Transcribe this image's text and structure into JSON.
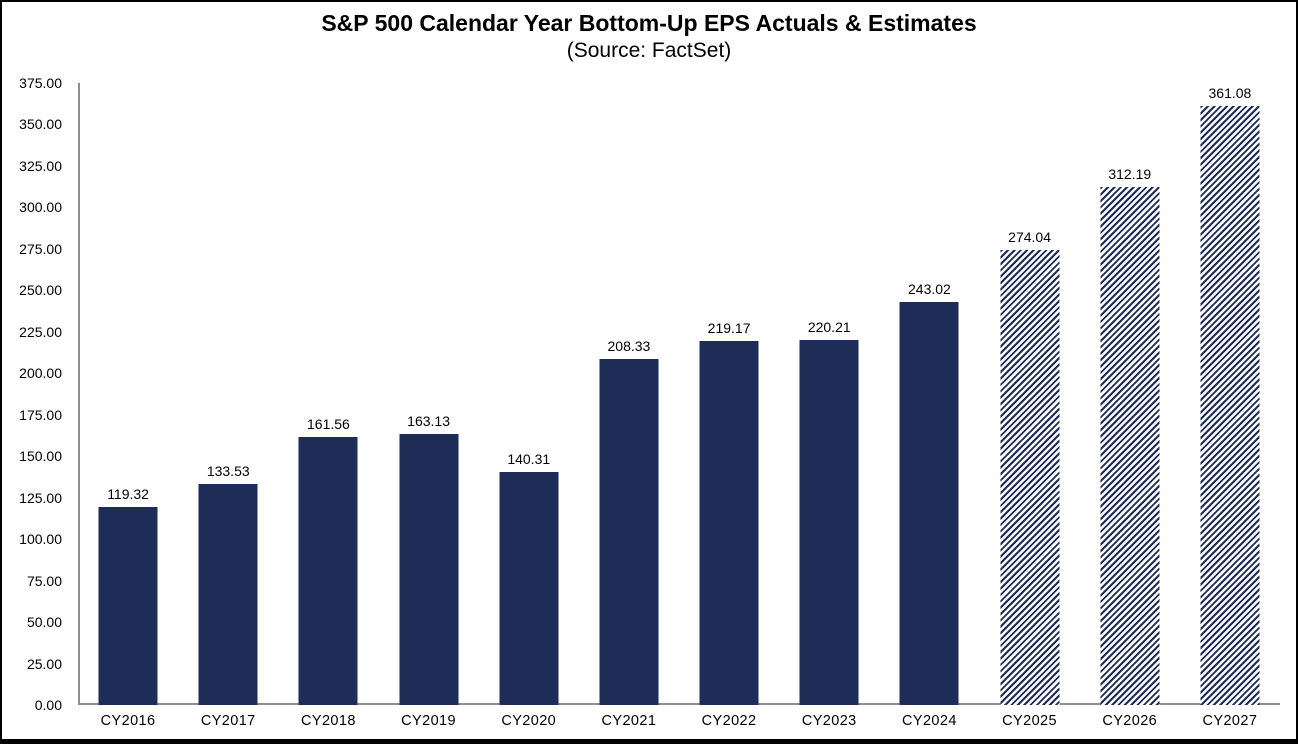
{
  "chart_data": {
    "type": "bar",
    "title": "S&P 500 Calendar Year Bottom-Up EPS Actuals & Estimates",
    "subtitle": "(Source: FactSet)",
    "categories": [
      "CY2016",
      "CY2017",
      "CY2018",
      "CY2019",
      "CY2020",
      "CY2021",
      "CY2022",
      "CY2023",
      "CY2024",
      "CY2025",
      "CY2026",
      "CY2027"
    ],
    "values": [
      119.32,
      133.53,
      161.56,
      163.13,
      140.31,
      208.33,
      219.17,
      220.21,
      243.02,
      274.04,
      312.19,
      361.08
    ],
    "value_labels": [
      "119.32",
      "133.53",
      "161.56",
      "163.13",
      "140.31",
      "208.33",
      "219.17",
      "220.21",
      "243.02",
      "274.04",
      "312.19",
      "361.08"
    ],
    "estimated": [
      false,
      false,
      false,
      false,
      false,
      false,
      false,
      false,
      false,
      true,
      true,
      true
    ],
    "y_tick_labels": [
      "375.00",
      "350.00",
      "325.00",
      "300.00",
      "275.00",
      "250.00",
      "225.00",
      "200.00",
      "175.00",
      "150.00",
      "125.00",
      "100.00",
      "75.00",
      "50.00",
      "25.00",
      "0.00"
    ],
    "ylim": [
      0,
      375
    ],
    "xlabel": "",
    "ylabel": "",
    "grid": false,
    "legend": "none",
    "colors": {
      "bar": "#1E2D58",
      "axis": "#8f8f8f",
      "text": "#000000"
    },
    "estimate_style": "diagonal-hatch"
  }
}
